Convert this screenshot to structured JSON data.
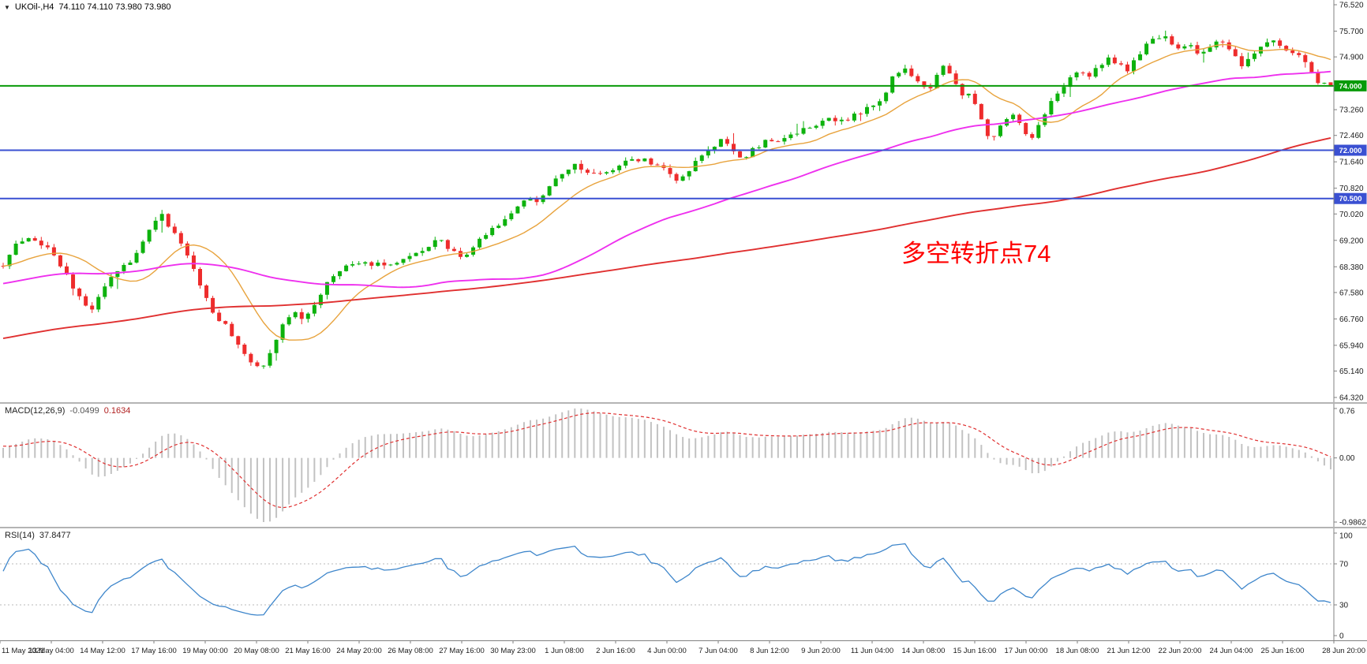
{
  "header": {
    "symbol_period": "UKOil-,H4",
    "ohlc": "74.110 74.110 73.980 73.980"
  },
  "main_chart": {
    "annotation": {
      "text": "多空转折点74",
      "color": "#ff0000"
    }
  },
  "chart_data": {
    "type": "candlestick",
    "symbol": "UKOil-",
    "timeframe": "H4",
    "last_candle": {
      "open": 74.11,
      "high": 74.11,
      "low": 73.98,
      "close": 73.98
    },
    "visible_candles": 210,
    "history_candles": 160,
    "candle_colors": {
      "up": "#0db20d",
      "down": "#ee2c2c"
    },
    "y_axis": {
      "min": 64.32,
      "max": 76.52,
      "ticks": [
        "76.520",
        "75.700",
        "74.900",
        "74.080",
        "73.260",
        "72.460",
        "71.640",
        "70.820",
        "70.020",
        "69.200",
        "68.380",
        "67.580",
        "66.760",
        "65.940",
        "65.140",
        "64.320"
      ]
    },
    "hlines": [
      {
        "price": 74.0,
        "label": "74.000",
        "color": "#089a08"
      },
      {
        "price": 72.0,
        "label": "72.000",
        "color": "#3a50d2"
      },
      {
        "price": 70.5,
        "label": "70.500",
        "color": "#3a50d2"
      }
    ],
    "moving_averages": [
      {
        "name": "ma-fast",
        "period": 13,
        "color": "#e8a33d",
        "width": 1.4
      },
      {
        "name": "ma-medium",
        "period": 55,
        "color": "#ee30ee",
        "width": 1.9
      },
      {
        "name": "ma-slow",
        "period": 160,
        "color": "#e03030",
        "width": 1.9
      }
    ],
    "history_path": [
      [
        -0.77,
        63.3
      ],
      [
        -0.6,
        64.6
      ],
      [
        -0.45,
        65.8
      ],
      [
        -0.3,
        66.8
      ],
      [
        -0.2,
        67.4
      ],
      [
        -0.12,
        68.0
      ],
      [
        -0.06,
        68.3
      ],
      [
        -0.02,
        68.4
      ]
    ],
    "price_path": [
      [
        0.0,
        68.45
      ],
      [
        0.008,
        69.0
      ],
      [
        0.018,
        69.35
      ],
      [
        0.028,
        69.1
      ],
      [
        0.038,
        68.8
      ],
      [
        0.048,
        68.1
      ],
      [
        0.058,
        67.4
      ],
      [
        0.066,
        67.05
      ],
      [
        0.075,
        67.6
      ],
      [
        0.085,
        68.3
      ],
      [
        0.095,
        68.5
      ],
      [
        0.105,
        69.1
      ],
      [
        0.112,
        69.7
      ],
      [
        0.118,
        70.05
      ],
      [
        0.125,
        69.6
      ],
      [
        0.132,
        69.2
      ],
      [
        0.14,
        68.6
      ],
      [
        0.148,
        67.9
      ],
      [
        0.158,
        67.0
      ],
      [
        0.168,
        66.5
      ],
      [
        0.178,
        65.9
      ],
      [
        0.188,
        65.35
      ],
      [
        0.195,
        65.15
      ],
      [
        0.202,
        65.7
      ],
      [
        0.21,
        66.5
      ],
      [
        0.218,
        66.95
      ],
      [
        0.226,
        66.8
      ],
      [
        0.235,
        67.2
      ],
      [
        0.245,
        67.9
      ],
      [
        0.255,
        68.35
      ],
      [
        0.268,
        68.5
      ],
      [
        0.282,
        68.45
      ],
      [
        0.295,
        68.55
      ],
      [
        0.308,
        68.65
      ],
      [
        0.32,
        69.05
      ],
      [
        0.33,
        69.2
      ],
      [
        0.338,
        68.85
      ],
      [
        0.346,
        68.6
      ],
      [
        0.355,
        69.0
      ],
      [
        0.365,
        69.5
      ],
      [
        0.375,
        69.65
      ],
      [
        0.385,
        70.15
      ],
      [
        0.395,
        70.5
      ],
      [
        0.403,
        70.35
      ],
      [
        0.412,
        70.9
      ],
      [
        0.422,
        71.3
      ],
      [
        0.43,
        71.55
      ],
      [
        0.44,
        71.35
      ],
      [
        0.45,
        71.2
      ],
      [
        0.462,
        71.5
      ],
      [
        0.472,
        71.7
      ],
      [
        0.482,
        71.75
      ],
      [
        0.492,
        71.55
      ],
      [
        0.5,
        71.3
      ],
      [
        0.507,
        71.05
      ],
      [
        0.515,
        71.35
      ],
      [
        0.525,
        71.8
      ],
      [
        0.535,
        72.1
      ],
      [
        0.543,
        72.35
      ],
      [
        0.55,
        72.0
      ],
      [
        0.557,
        71.75
      ],
      [
        0.565,
        72.0
      ],
      [
        0.575,
        72.3
      ],
      [
        0.585,
        72.2
      ],
      [
        0.595,
        72.5
      ],
      [
        0.605,
        72.65
      ],
      [
        0.615,
        72.8
      ],
      [
        0.625,
        73.0
      ],
      [
        0.633,
        72.9
      ],
      [
        0.642,
        73.1
      ],
      [
        0.652,
        73.3
      ],
      [
        0.662,
        73.6
      ],
      [
        0.67,
        74.25
      ],
      [
        0.678,
        74.6
      ],
      [
        0.685,
        74.35
      ],
      [
        0.691,
        74.0
      ],
      [
        0.697,
        73.85
      ],
      [
        0.703,
        74.3
      ],
      [
        0.708,
        74.7
      ],
      [
        0.714,
        74.3
      ],
      [
        0.719,
        73.9
      ],
      [
        0.724,
        73.6
      ],
      [
        0.729,
        73.9
      ],
      [
        0.734,
        73.25
      ],
      [
        0.739,
        72.6
      ],
      [
        0.744,
        72.35
      ],
      [
        0.75,
        72.7
      ],
      [
        0.756,
        72.95
      ],
      [
        0.762,
        73.1
      ],
      [
        0.768,
        72.7
      ],
      [
        0.773,
        72.35
      ],
      [
        0.778,
        72.6
      ],
      [
        0.784,
        73.1
      ],
      [
        0.79,
        73.5
      ],
      [
        0.797,
        73.95
      ],
      [
        0.805,
        74.3
      ],
      [
        0.812,
        74.5
      ],
      [
        0.818,
        74.25
      ],
      [
        0.825,
        74.6
      ],
      [
        0.832,
        74.9
      ],
      [
        0.84,
        74.7
      ],
      [
        0.846,
        74.45
      ],
      [
        0.852,
        74.8
      ],
      [
        0.86,
        75.2
      ],
      [
        0.868,
        75.45
      ],
      [
        0.875,
        75.5
      ],
      [
        0.881,
        75.25
      ],
      [
        0.887,
        75.1
      ],
      [
        0.893,
        75.3
      ],
      [
        0.9,
        74.95
      ],
      [
        0.906,
        75.15
      ],
      [
        0.912,
        75.35
      ],
      [
        0.917,
        75.5
      ],
      [
        0.923,
        75.2
      ],
      [
        0.929,
        74.85
      ],
      [
        0.934,
        74.6
      ],
      [
        0.94,
        74.95
      ],
      [
        0.946,
        75.15
      ],
      [
        0.952,
        75.3
      ],
      [
        0.958,
        75.35
      ],
      [
        0.963,
        75.15
      ],
      [
        0.968,
        75.0
      ],
      [
        0.973,
        74.95
      ],
      [
        0.978,
        75.05
      ],
      [
        0.984,
        74.55
      ],
      [
        0.99,
        74.05
      ],
      [
        0.995,
        74.15
      ],
      [
        1.0,
        73.98
      ]
    ],
    "macd": {
      "label": "MACD(12,26,9)",
      "fast": 12,
      "slow": 26,
      "signal": 9,
      "main_value": "-0.0499",
      "signal_value": "0.1634",
      "axis_max": 0.76,
      "axis_min": -0.9862,
      "axis_labels": {
        "max": "0.76",
        "zero": "0.00",
        "min": "-0.9862"
      },
      "colors": {
        "histogram": "#c2c2c2",
        "signal": "#e03030"
      }
    },
    "rsi": {
      "label": "RSI(14)",
      "period": 14,
      "value": "37.8477",
      "levels": [
        70,
        30
      ],
      "axis": [
        {
          "v": 100,
          "label": "100"
        },
        {
          "v": 70,
          "label": "70"
        },
        {
          "v": 30,
          "label": "30"
        },
        {
          "v": 0,
          "label": "0"
        }
      ],
      "color": "#3e86cb"
    },
    "time_labels": [
      "11 May 2021",
      "13 May 04:00",
      "14 May 12:00",
      "17 May 16:00",
      "19 May 00:00",
      "20 May 08:00",
      "21 May 16:00",
      "24 May 20:00",
      "26 May 08:00",
      "27 May 16:00",
      "30 May 23:00",
      "1 Jun 08:00",
      "2 Jun 16:00",
      "4 Jun 00:00",
      "7 Jun 04:00",
      "8 Jun 12:00",
      "9 Jun 20:00",
      "11 Jun 04:00",
      "14 Jun 08:00",
      "15 Jun 16:00",
      "17 Jun 00:00",
      "18 Jun 08:00",
      "21 Jun 12:00",
      "22 Jun 20:00",
      "24 Jun 04:00",
      "25 Jun 16:00",
      "28 Jun 20:00"
    ]
  }
}
